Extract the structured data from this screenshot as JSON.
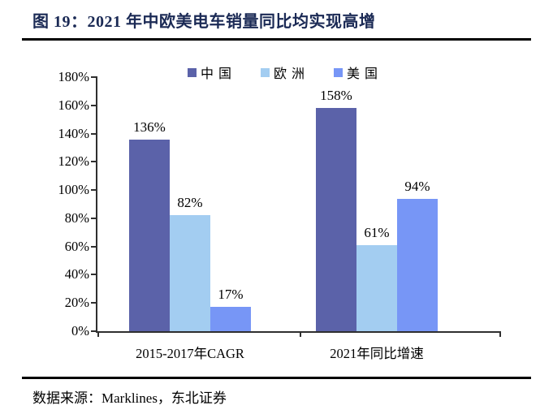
{
  "page": {
    "title": "图 19：2021 年中欧美电车销量同比均实现高增",
    "source": "数据来源：Marklines，东北证券"
  },
  "chart_data": {
    "type": "bar",
    "title": "图 19：2021 年中欧美电车销量同比均实现高增",
    "categories": [
      "2015-2017年CAGR",
      "2021年同比增速"
    ],
    "series": [
      {
        "name": "中国",
        "color": "#5b62a9",
        "values": [
          136,
          158
        ]
      },
      {
        "name": "欧洲",
        "color": "#a3cdf1",
        "values": [
          82,
          61
        ]
      },
      {
        "name": "美国",
        "color": "#7796f6",
        "values": [
          17,
          94
        ]
      }
    ],
    "value_suffix": "%",
    "ylim": [
      0,
      180
    ],
    "ytick_step": 20,
    "ytick_labels": [
      "0%",
      "20%",
      "40%",
      "60%",
      "80%",
      "100%",
      "120%",
      "140%",
      "160%",
      "180%"
    ],
    "grid": false,
    "legend_position": "top",
    "axis_color": "#2f2f2f",
    "text_color": "#000000",
    "title_color": "#1b2a55"
  }
}
